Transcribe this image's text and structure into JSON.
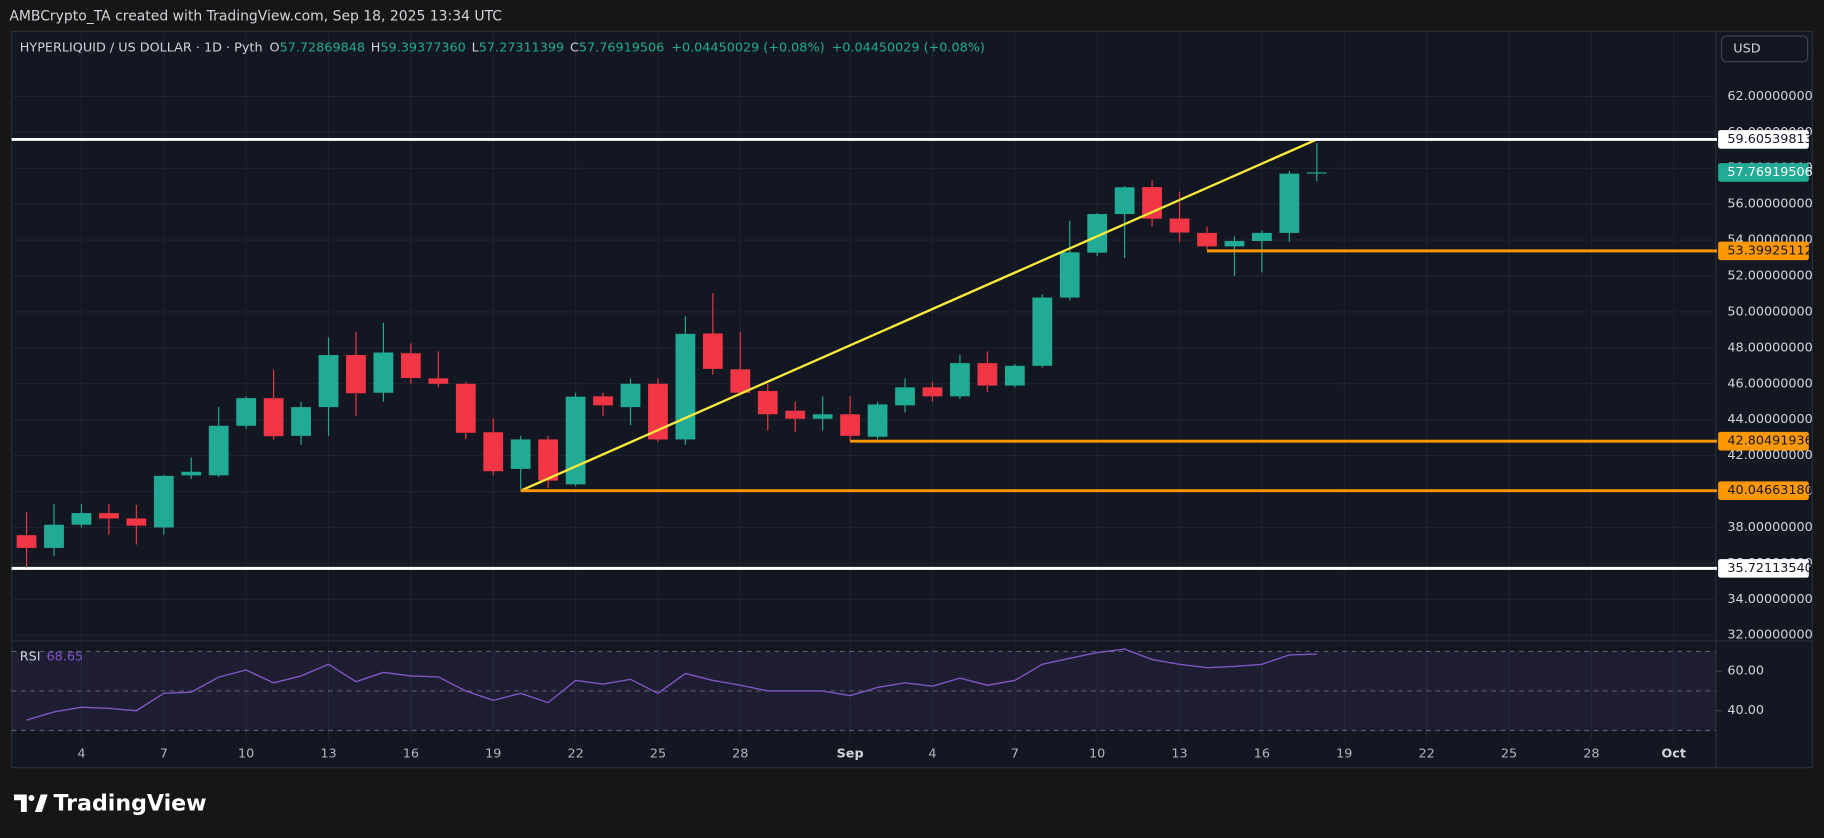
{
  "header": {
    "credit": "AMBCrypto_TA created with TradingView.com, Sep 18, 2025 13:34 UTC",
    "symbol": "HYPERLIQUID / US DOLLAR · 1D · Pyth",
    "ohlc_labels": [
      "O",
      "H",
      "L",
      "C"
    ],
    "ohlc_values": [
      "57.72869848",
      "59.39377360",
      "57.27311399",
      "57.76919506"
    ],
    "change": "+0.04450029 (+0.08%)",
    "currency": "USD"
  },
  "footer": {
    "brand": "TradingView"
  },
  "chart_data": {
    "type": "candlestick",
    "categories": [
      null,
      null,
      "4",
      null,
      null,
      "7",
      null,
      null,
      "10",
      null,
      null,
      "13",
      null,
      null,
      "16",
      null,
      null,
      "19",
      null,
      null,
      "22",
      null,
      null,
      "25",
      null,
      null,
      "28",
      null,
      null,
      null,
      "Sep",
      null,
      null,
      "4",
      null,
      null,
      "7",
      null,
      null,
      "10",
      null,
      null,
      "13",
      null,
      null,
      "16",
      null,
      null,
      "19",
      null,
      null,
      "22",
      null,
      null,
      "25",
      null,
      null,
      "28",
      null,
      null,
      "Oct",
      null
    ],
    "open": [
      37.57,
      36.86,
      38.15,
      38.8,
      38.5,
      38.0,
      40.9,
      40.9,
      43.66,
      45.2,
      43.1,
      44.7,
      47.6,
      45.5,
      47.7,
      46.3,
      46.0,
      43.3,
      41.26,
      42.9,
      40.4,
      45.3,
      44.7,
      46.0,
      42.9,
      48.8,
      46.8,
      45.6,
      44.5,
      44.05,
      44.3,
      43.05,
      44.8,
      45.8,
      45.3,
      47.15,
      45.9,
      47.0,
      50.8,
      53.3,
      55.45,
      56.95,
      55.2,
      54.4,
      53.65,
      53.95,
      54.4,
      57.72869848,
      null,
      null,
      null,
      null,
      null,
      null,
      null,
      null,
      null,
      null,
      null,
      null,
      null,
      null
    ],
    "high": [
      38.86,
      39.32,
      39.3,
      39.3,
      39.25,
      40.93,
      41.9,
      44.7,
      45.3,
      46.77,
      45.0,
      48.58,
      48.9,
      49.4,
      48.25,
      47.8,
      46.1,
      44.05,
      43.1,
      43.1,
      45.5,
      45.5,
      46.3,
      46.3,
      49.75,
      51.05,
      48.9,
      46.0,
      45.0,
      45.3,
      45.3,
      45.0,
      46.3,
      46.1,
      47.6,
      47.8,
      47.1,
      50.98,
      55.07,
      55.5,
      57.0,
      57.33,
      56.7,
      54.75,
      54.2,
      54.55,
      57.85,
      59.3937736,
      null,
      null,
      null,
      null,
      null,
      null,
      null,
      null,
      null,
      null,
      null,
      null,
      null,
      null
    ],
    "low": [
      35.62,
      36.4,
      38.0,
      37.6,
      37.05,
      37.6,
      40.7,
      40.8,
      43.5,
      42.9,
      42.6,
      43.1,
      44.2,
      45.0,
      46.0,
      45.8,
      42.9,
      40.9,
      40.15,
      40.2,
      40.3,
      44.2,
      43.7,
      42.75,
      42.6,
      46.5,
      45.35,
      43.4,
      43.3,
      43.4,
      42.8,
      42.9,
      44.4,
      45.0,
      45.15,
      45.55,
      45.8,
      46.9,
      50.65,
      53.1,
      53.0,
      54.75,
      53.9,
      53.45,
      52.0,
      52.2,
      53.9,
      57.27311399,
      null,
      null,
      null,
      null,
      null,
      null,
      null,
      null,
      null,
      null,
      null,
      null,
      null,
      null
    ],
    "close": [
      36.86,
      38.15,
      38.8,
      38.5,
      38.1,
      40.87,
      41.1,
      43.66,
      45.2,
      43.08,
      44.7,
      47.6,
      45.47,
      47.74,
      46.32,
      46.0,
      43.27,
      41.13,
      42.9,
      40.61,
      45.28,
      44.8,
      46.0,
      42.9,
      48.78,
      46.83,
      45.5,
      44.3,
      44.05,
      44.3,
      43.1,
      44.85,
      45.8,
      45.3,
      47.15,
      45.9,
      47.0,
      50.8,
      53.32,
      55.45,
      56.94,
      55.19,
      54.42,
      53.65,
      53.95,
      54.4,
      57.7,
      57.76919506,
      null,
      null,
      null,
      null,
      null,
      null,
      null,
      null,
      null,
      null,
      null,
      null,
      null,
      null
    ],
    "up_color": "#22ab94",
    "down_color": "#f23645",
    "ylim": [
      31.68,
      64.0
    ],
    "yticks": [
      {
        "value": 32,
        "label": "32.00000000"
      },
      {
        "value": 34,
        "label": "34.00000000"
      },
      {
        "value": 36,
        "label": "36.00000000"
      },
      {
        "value": 38,
        "label": "38.00000000"
      },
      {
        "value": 40,
        "label": "40.00000000"
      },
      {
        "value": 42,
        "label": "42.00000000"
      },
      {
        "value": 44,
        "label": "44.00000000"
      },
      {
        "value": 46,
        "label": "46.00000000"
      },
      {
        "value": 48,
        "label": "48.00000000"
      },
      {
        "value": 50,
        "label": "50.00000000"
      },
      {
        "value": 52,
        "label": "52.00000000"
      },
      {
        "value": 54,
        "label": "54.00000000"
      },
      {
        "value": 56,
        "label": "56.00000000"
      },
      {
        "value": 58,
        "label": "58.00000000"
      },
      {
        "value": 60,
        "label": "60.00000000"
      },
      {
        "value": 62,
        "label": "62.00000000"
      }
    ],
    "grid": true,
    "price_lines": [
      {
        "value": 59.60539813,
        "label": "59.60539813",
        "color": "#ffffff"
      },
      {
        "value": 53.39925112,
        "label": "53.39925112",
        "color": "#ff9800",
        "from": 43
      },
      {
        "value": 42.80491936,
        "label": "42.80491936",
        "color": "#ff9800",
        "from": 30
      },
      {
        "value": 40.0466318,
        "label": "40.04663180",
        "color": "#ff9800",
        "from": 18
      },
      {
        "value": 35.7211354,
        "label": "35.72113540",
        "color": "#ffffff"
      }
    ],
    "trend_line": {
      "x": [
        18,
        47
      ],
      "y": [
        40.0466318,
        59.60539813
      ],
      "color": "#ffeb3b"
    },
    "rsi": {
      "name": "RSI",
      "color": "#7e57c2",
      "values": [
        35.3,
        39.4,
        41.8,
        41.2,
        40,
        48.8,
        49.4,
        57,
        60.6,
        54.1,
        57.6,
        63.5,
        54.7,
        59.4,
        57.6,
        57.1,
        50,
        45.3,
        48.8,
        44.1,
        55.3,
        53.5,
        55.9,
        48.8,
        58.8,
        55.3,
        52.9,
        50,
        50,
        50,
        47.6,
        51.8,
        54.1,
        52.4,
        56.5,
        52.9,
        55.3,
        63.5,
        66.5,
        69.4,
        71.2,
        65.9,
        63.5,
        61.8,
        62.4,
        63.5,
        68.2,
        68.65,
        null,
        null,
        null,
        null,
        null,
        null,
        null,
        null,
        null,
        null,
        null,
        null,
        null,
        null
      ],
      "ylim": [
        24.7,
        75.3
      ],
      "yticks": [
        {
          "value": 40,
          "label": "40.00"
        },
        {
          "value": 60,
          "label": "60.00"
        }
      ],
      "bands": [
        70,
        50,
        30
      ]
    }
  }
}
